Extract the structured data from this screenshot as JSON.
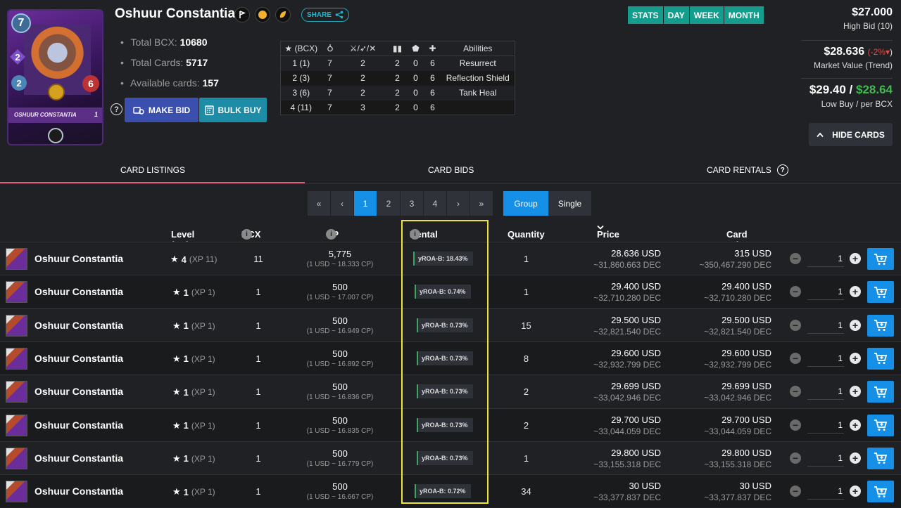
{
  "card": {
    "name": "Oshuur Constantia",
    "mana": "7",
    "stat_a": "2",
    "stat_b": "2",
    "health": "6",
    "banner": "OSHUUR CONSTANTIA",
    "level_badge": "1",
    "total_bcx_label": "Total BCX:",
    "total_bcx": "10680",
    "total_cards_label": "Total Cards:",
    "total_cards": "5717",
    "available_label": "Available cards:",
    "available": "157"
  },
  "share_label": "SHARE",
  "actions": {
    "make_bid": "MAKE BID",
    "bulk_buy": "BULK BUY"
  },
  "stats_table": {
    "headers": [
      "(BCX)",
      "",
      "",
      "",
      "",
      "",
      "Abilities"
    ],
    "rows": [
      [
        "1 (1)",
        "7",
        "2",
        "2",
        "0",
        "6",
        "Resurrect"
      ],
      [
        "2 (3)",
        "7",
        "2",
        "2",
        "0",
        "6",
        "Reflection Shield"
      ],
      [
        "3 (6)",
        "7",
        "2",
        "2",
        "0",
        "6",
        "Tank Heal"
      ],
      [
        "4 (11)",
        "7",
        "3",
        "2",
        "0",
        "6",
        ""
      ]
    ]
  },
  "period_tabs": [
    "STATS",
    "DAY",
    "WEEK",
    "MONTH"
  ],
  "prices": {
    "high_bid": "$27.000",
    "high_bid_label": "High Bid (10)",
    "market_value": "$28.636",
    "market_trend": "(-2%",
    "market_trend_close": ")",
    "market_label": "Market Value (Trend)",
    "low_buy": "$29.40",
    "low_buy_sep": " / ",
    "per_bcx": "$28.64",
    "low_buy_label": "Low Buy / per BCX"
  },
  "hide_cards": "HIDE CARDS",
  "section_tabs": {
    "listings": "CARD LISTINGS",
    "bids": "CARD BIDS",
    "rentals": "CARD RENTALS"
  },
  "pagination": [
    "«",
    "‹",
    "1",
    "2",
    "3",
    "4",
    "›",
    "»"
  ],
  "view_toggle": {
    "group": "Group",
    "single": "Single"
  },
  "columns": {
    "level": "Level (XP)",
    "bcx": "BCX",
    "cp": "CP",
    "yroa": "Rental yROA",
    "quantity": "Quantity",
    "price_bcx": "Price x BCX",
    "card_price": "Card Price"
  },
  "listings": [
    {
      "name": "Oshuur Constantia",
      "level": "4",
      "xp": "(XP 11)",
      "bcx": "11",
      "cp": "5,775",
      "cp_rate": "(1 USD ~ 18.333 CP)",
      "yroa": "yROA-B: 18.43%",
      "qty": "1",
      "price_bcx": "28.636 USD",
      "price_bcx_dec": "~31,860.663 DEC",
      "card_price": "315 USD",
      "card_price_dec": "~350,467.290 DEC",
      "buy_qty": "1"
    },
    {
      "name": "Oshuur Constantia",
      "level": "1",
      "xp": "(XP 1)",
      "bcx": "1",
      "cp": "500",
      "cp_rate": "(1 USD ~ 17.007 CP)",
      "yroa": "yROA-B: 0.74%",
      "qty": "1",
      "price_bcx": "29.400 USD",
      "price_bcx_dec": "~32,710.280 DEC",
      "card_price": "29.400 USD",
      "card_price_dec": "~32,710.280 DEC",
      "buy_qty": "1"
    },
    {
      "name": "Oshuur Constantia",
      "level": "1",
      "xp": "(XP 1)",
      "bcx": "1",
      "cp": "500",
      "cp_rate": "(1 USD ~ 16.949 CP)",
      "yroa": "yROA-B: 0.73%",
      "qty": "15",
      "price_bcx": "29.500 USD",
      "price_bcx_dec": "~32,821.540 DEC",
      "card_price": "29.500 USD",
      "card_price_dec": "~32,821.540 DEC",
      "buy_qty": "1"
    },
    {
      "name": "Oshuur Constantia",
      "level": "1",
      "xp": "(XP 1)",
      "bcx": "1",
      "cp": "500",
      "cp_rate": "(1 USD ~ 16.892 CP)",
      "yroa": "yROA-B: 0.73%",
      "qty": "8",
      "price_bcx": "29.600 USD",
      "price_bcx_dec": "~32,932.799 DEC",
      "card_price": "29.600 USD",
      "card_price_dec": "~32,932.799 DEC",
      "buy_qty": "1"
    },
    {
      "name": "Oshuur Constantia",
      "level": "1",
      "xp": "(XP 1)",
      "bcx": "1",
      "cp": "500",
      "cp_rate": "(1 USD ~ 16.836 CP)",
      "yroa": "yROA-B: 0.73%",
      "qty": "2",
      "price_bcx": "29.699 USD",
      "price_bcx_dec": "~33,042.946 DEC",
      "card_price": "29.699 USD",
      "card_price_dec": "~33,042.946 DEC",
      "buy_qty": "1"
    },
    {
      "name": "Oshuur Constantia",
      "level": "1",
      "xp": "(XP 1)",
      "bcx": "1",
      "cp": "500",
      "cp_rate": "(1 USD ~ 16.835 CP)",
      "yroa": "yROA-B: 0.73%",
      "qty": "2",
      "price_bcx": "29.700 USD",
      "price_bcx_dec": "~33,044.059 DEC",
      "card_price": "29.700 USD",
      "card_price_dec": "~33,044.059 DEC",
      "buy_qty": "1"
    },
    {
      "name": "Oshuur Constantia",
      "level": "1",
      "xp": "(XP 1)",
      "bcx": "1",
      "cp": "500",
      "cp_rate": "(1 USD ~ 16.779 CP)",
      "yroa": "yROA-B: 0.73%",
      "qty": "1",
      "price_bcx": "29.800 USD",
      "price_bcx_dec": "~33,155.318 DEC",
      "card_price": "29.800 USD",
      "card_price_dec": "~33,155.318 DEC",
      "buy_qty": "1"
    },
    {
      "name": "Oshuur Constantia",
      "level": "1",
      "xp": "(XP 1)",
      "bcx": "1",
      "cp": "500",
      "cp_rate": "(1 USD ~ 16.667 CP)",
      "yroa": "yROA-B: 0.72%",
      "qty": "34",
      "price_bcx": "30 USD",
      "price_bcx_dec": "~33,377.837 DEC",
      "card_price": "30 USD",
      "card_price_dec": "~33,377.837 DEC",
      "buy_qty": "1"
    }
  ],
  "colors": {
    "accent_blue": "#1590e6",
    "teal": "#149c8c",
    "highlight": "#f0e23a",
    "positive": "#3fb950",
    "negative": "#e04b4b"
  }
}
